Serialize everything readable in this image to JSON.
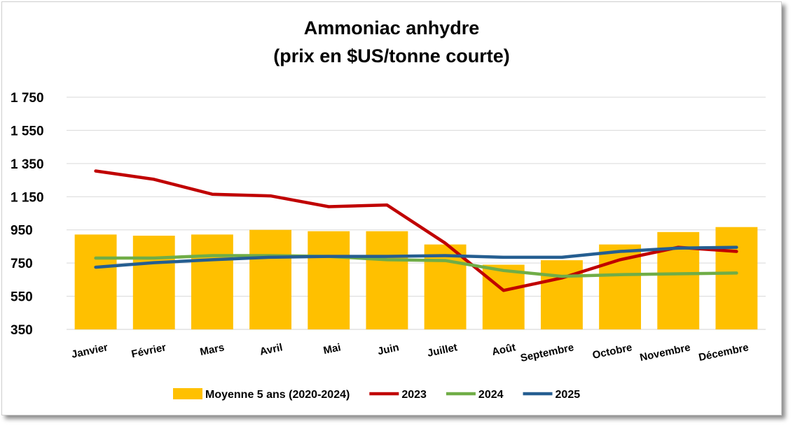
{
  "chart_data": {
    "type": "bar+line",
    "title_line1": "Ammoniac anhydre",
    "title_line2": "(prix en $US/tonne courte)",
    "xlabel": "",
    "ylabel": "",
    "ylim": [
      350,
      1750
    ],
    "yticks": [
      350,
      550,
      750,
      950,
      1150,
      1350,
      1550,
      1750
    ],
    "ytick_labels": [
      "350",
      "550",
      "750",
      "950",
      "1 150",
      "1 350",
      "1 550",
      "1 750"
    ],
    "grid": true,
    "legend_position": "bottom",
    "categories": [
      "Janvier",
      "Février",
      "Mars",
      "Avril",
      "Mai",
      "Juin",
      "Juillet",
      "Août",
      "Septembre",
      "Octobre",
      "Novembre",
      "Décembre"
    ],
    "bars": {
      "name": "Moyenne 5 ans (2020-2024)",
      "color": "#FFC000",
      "values": [
        922,
        915,
        922,
        950,
        942,
        942,
        862,
        740,
        767,
        862,
        937,
        967
      ]
    },
    "series": [
      {
        "name": "2023",
        "color": "#C00000",
        "values": [
          1305,
          1255,
          1165,
          1155,
          1090,
          1100,
          870,
          585,
          660,
          770,
          845,
          820
        ]
      },
      {
        "name": "2024",
        "color": "#70AD47",
        "values": [
          780,
          780,
          795,
          795,
          790,
          770,
          765,
          705,
          670,
          680,
          685,
          690
        ]
      },
      {
        "name": "2025",
        "color": "#255E91",
        "values": [
          725,
          752,
          770,
          785,
          790,
          790,
          795,
          785,
          785,
          820,
          840,
          845
        ]
      }
    ]
  }
}
